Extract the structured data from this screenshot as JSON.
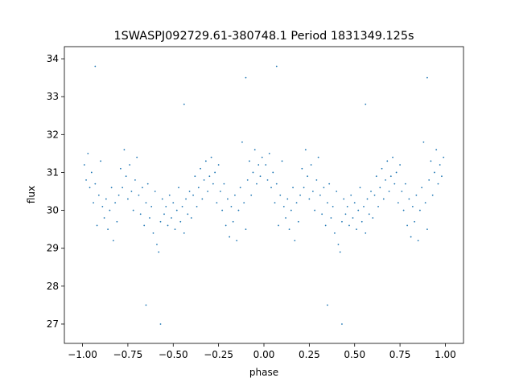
{
  "chart_data": {
    "type": "scatter",
    "title": "1SWASPJ092729.61-380748.1 Period 1831349.125s",
    "x_label": "phase",
    "y_label": "flux",
    "xlim": [
      -1.1,
      1.1
    ],
    "ylim": [
      26.49,
      34.32
    ],
    "xticks": [
      {
        "value": -1,
        "label": "−1.00"
      },
      {
        "value": -0.75,
        "label": "−0.75"
      },
      {
        "value": -0.5,
        "label": "−0.50"
      },
      {
        "value": -0.25,
        "label": "−0.25"
      },
      {
        "value": 0,
        "label": "0.00"
      },
      {
        "value": 0.25,
        "label": "0.25"
      },
      {
        "value": 0.5,
        "label": "0.50"
      },
      {
        "value": 0.75,
        "label": "0.75"
      },
      {
        "value": 1,
        "label": "1.00"
      }
    ],
    "yticks": [
      27,
      28,
      29,
      30,
      31,
      32,
      33,
      34
    ],
    "grid": false,
    "series": [
      {
        "color": "#1f77b4",
        "x": [
          0.01,
          0.02,
          0.03,
          0.04,
          0.05,
          0.06,
          0.07,
          0.08,
          0.09,
          0.1,
          0.11,
          0.12,
          0.13,
          0.14,
          0.15,
          0.16,
          0.17,
          0.18,
          0.19,
          0.2,
          0.21,
          0.22,
          0.23,
          0.24,
          0.25,
          0.26,
          0.27,
          0.28,
          0.29,
          0.3,
          0.31,
          0.32,
          0.33,
          0.34,
          0.35,
          0.36,
          0.37,
          0.38,
          0.39,
          0.4,
          0.41,
          0.42,
          0.43,
          0.44,
          0.45,
          0.46,
          0.47,
          0.48,
          0.49,
          0.5,
          0.51,
          0.52,
          0.53,
          0.54,
          0.55,
          0.56,
          0.57,
          0.58,
          0.59,
          0.6,
          0.61,
          0.62,
          0.63,
          0.64,
          0.65,
          0.66,
          0.67,
          0.68,
          0.69,
          0.7,
          0.71,
          0.72,
          0.73,
          0.74,
          0.75,
          0.76,
          0.77,
          0.78,
          0.79,
          0.8,
          0.81,
          0.82,
          0.83,
          0.84,
          0.85,
          0.86,
          0.87,
          0.88,
          0.89,
          0.9,
          0.91,
          0.92,
          0.93,
          0.94,
          0.95,
          0.96,
          0.97,
          0.98,
          0.99,
          0.43,
          0.07,
          0.35,
          0.9,
          0.56,
          -0.99,
          -0.98,
          -0.97,
          -0.96,
          -0.95,
          -0.94,
          -0.93,
          -0.92,
          -0.91,
          -0.9,
          -0.89,
          -0.88,
          -0.87,
          -0.86,
          -0.85,
          -0.84,
          -0.83,
          -0.82,
          -0.81,
          -0.8,
          -0.79,
          -0.78,
          -0.77,
          -0.76,
          -0.75,
          -0.74,
          -0.73,
          -0.72,
          -0.71,
          -0.7,
          -0.69,
          -0.68,
          -0.67,
          -0.66,
          -0.65,
          -0.64,
          -0.63,
          -0.62,
          -0.61,
          -0.6,
          -0.59,
          -0.58,
          -0.57,
          -0.56,
          -0.55,
          -0.54,
          -0.53,
          -0.52,
          -0.51,
          -0.5,
          -0.49,
          -0.48,
          -0.47,
          -0.46,
          -0.45,
          -0.44,
          -0.43,
          -0.42,
          -0.41,
          -0.4,
          -0.39,
          -0.38,
          -0.37,
          -0.36,
          -0.35,
          -0.34,
          -0.33,
          -0.32,
          -0.31,
          -0.3,
          -0.29,
          -0.28,
          -0.27,
          -0.26,
          -0.25,
          -0.24,
          -0.23,
          -0.22,
          -0.21,
          -0.2,
          -0.19,
          -0.18,
          -0.17,
          -0.16,
          -0.15,
          -0.14,
          -0.13,
          -0.12,
          -0.11,
          -0.1,
          -0.09,
          -0.08,
          -0.07,
          -0.06,
          -0.05,
          -0.04,
          -0.03,
          -0.02,
          -0.01,
          -0.57,
          -0.93,
          -0.65,
          -0.1,
          -0.44
        ],
        "values": [
          31.2,
          30.8,
          31.5,
          30.6,
          31.0,
          30.2,
          30.7,
          29.6,
          30.4,
          31.3,
          30.1,
          29.8,
          30.3,
          29.5,
          30.0,
          30.6,
          29.2,
          30.2,
          29.7,
          30.4,
          31.1,
          30.6,
          31.6,
          30.9,
          30.3,
          31.2,
          30.5,
          30.0,
          30.8,
          31.4,
          30.4,
          29.9,
          30.6,
          29.6,
          30.2,
          30.7,
          29.8,
          30.1,
          29.4,
          30.5,
          29.1,
          28.9,
          29.7,
          30.3,
          29.9,
          30.1,
          29.6,
          30.4,
          29.8,
          30.2,
          29.5,
          30.0,
          30.6,
          29.7,
          30.1,
          29.4,
          30.3,
          29.9,
          30.5,
          29.8,
          30.4,
          30.9,
          30.1,
          30.6,
          31.1,
          30.3,
          30.8,
          31.3,
          30.5,
          30.9,
          31.4,
          30.7,
          31.0,
          30.2,
          31.2,
          30.5,
          30.0,
          30.7,
          29.6,
          30.3,
          29.3,
          30.1,
          29.7,
          30.4,
          29.2,
          30.0,
          30.6,
          31.8,
          30.2,
          29.5,
          30.8,
          31.3,
          30.4,
          31.0,
          31.6,
          30.7,
          31.2,
          30.9,
          31.4,
          27.0,
          33.8,
          27.5,
          33.5,
          32.8,
          31.2,
          30.8,
          31.5,
          30.6,
          31.0,
          30.2,
          30.7,
          29.6,
          30.4,
          31.3,
          30.1,
          29.8,
          30.3,
          29.5,
          30.0,
          30.6,
          29.2,
          30.2,
          29.7,
          30.4,
          31.1,
          30.6,
          31.6,
          30.9,
          30.3,
          31.2,
          30.5,
          30.0,
          30.8,
          31.4,
          30.4,
          29.9,
          30.6,
          29.6,
          30.2,
          30.7,
          29.8,
          30.1,
          29.4,
          30.5,
          29.1,
          28.9,
          29.7,
          30.3,
          29.9,
          30.1,
          29.6,
          30.4,
          29.8,
          30.2,
          29.5,
          30.0,
          30.6,
          29.7,
          30.1,
          29.4,
          30.3,
          29.9,
          30.5,
          29.8,
          30.4,
          30.9,
          30.1,
          30.6,
          31.1,
          30.3,
          30.8,
          31.3,
          30.5,
          30.9,
          31.4,
          30.7,
          31.0,
          30.2,
          31.2,
          30.5,
          30.0,
          30.7,
          29.6,
          30.3,
          29.3,
          30.1,
          29.7,
          30.4,
          29.2,
          30.0,
          30.6,
          31.8,
          30.2,
          29.5,
          30.8,
          31.3,
          30.4,
          31.0,
          31.6,
          30.7,
          31.2,
          30.9,
          31.4,
          27.0,
          33.8,
          27.5,
          33.5,
          32.8
        ]
      }
    ]
  }
}
